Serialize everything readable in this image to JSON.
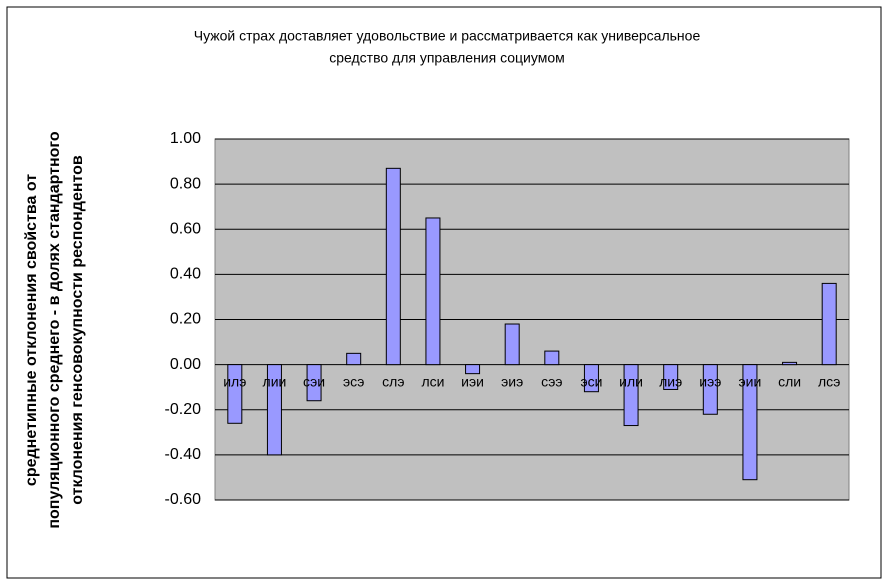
{
  "chart_data": {
    "type": "bar",
    "title": [
      "Чужой страх доставляет удовольствие и рассматривается как универсальное",
      "средство для управления социумом"
    ],
    "ylabel": [
      "среднетипные отклонения свойства от",
      "популяционного среднего - в долях стандартного",
      "отклонения генсовокупности респондентов"
    ],
    "categories": [
      "илэ",
      "лии",
      "сэи",
      "эсэ",
      "слэ",
      "лси",
      "иэи",
      "эиэ",
      "сээ",
      "эси",
      "или",
      "лиэ",
      "иээ",
      "эии",
      "сли",
      "лсэ"
    ],
    "values": [
      -0.26,
      -0.4,
      -0.16,
      0.05,
      0.87,
      0.65,
      -0.04,
      0.18,
      0.06,
      -0.12,
      -0.27,
      -0.11,
      -0.22,
      -0.51,
      0.01,
      0.36
    ],
    "color": "#9999ff",
    "ylim": [
      -0.6,
      1.0
    ],
    "yticks": [
      {
        "value": 1.0,
        "label": "1.00"
      },
      {
        "value": 0.8,
        "label": "0.80"
      },
      {
        "value": 0.6,
        "label": "0.60"
      },
      {
        "value": 0.4,
        "label": "0.40"
      },
      {
        "value": 0.2,
        "label": "0.20"
      },
      {
        "value": 0,
        "label": "0.00"
      },
      {
        "value": -0.2,
        "label": "-0.20"
      },
      {
        "value": -0.4,
        "label": "-0.40"
      },
      {
        "value": -0.6,
        "label": "-0.60"
      }
    ],
    "grid": true
  }
}
